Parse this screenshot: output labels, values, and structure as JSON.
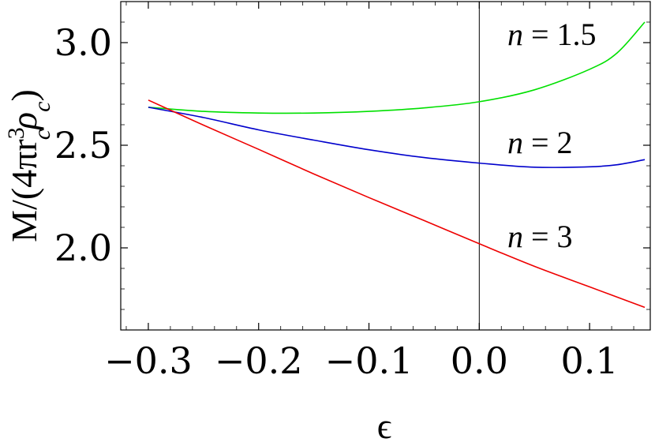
{
  "chart_data": {
    "type": "line",
    "title": "",
    "xlabel": "ϵ",
    "ylabel_parts": {
      "a": "M/(4πr",
      "sup": "3",
      "sub1": "c",
      "b": "ρ",
      "sub2": "c",
      "c": ")"
    },
    "xlim": [
      -0.325,
      0.155
    ],
    "ylim": [
      1.6,
      3.2
    ],
    "x_ticks": [
      {
        "value": -0.3,
        "label": "−0.3"
      },
      {
        "value": -0.2,
        "label": "−0.2"
      },
      {
        "value": -0.1,
        "label": "−0.1"
      },
      {
        "value": 0.0,
        "label": "0.0"
      },
      {
        "value": 0.1,
        "label": "0.1"
      }
    ],
    "y_ticks": [
      {
        "value": 2.0,
        "label": "2.0"
      },
      {
        "value": 2.5,
        "label": "2.5"
      },
      {
        "value": 3.0,
        "label": "3.0"
      }
    ],
    "vertical_line_x": 0.0,
    "grid": false,
    "series": [
      {
        "label_n": "n",
        "label_value": "= 1.5",
        "color": "#00e000",
        "x": [
          -0.3,
          -0.25,
          -0.2,
          -0.15,
          -0.1,
          -0.05,
          0.0,
          0.05,
          0.1,
          0.125,
          0.15
        ],
        "y": [
          2.685,
          2.665,
          2.657,
          2.657,
          2.665,
          2.682,
          2.712,
          2.77,
          2.87,
          2.95,
          3.1
        ]
      },
      {
        "label_n": "n",
        "label_value": "= 2",
        "color": "#0000cc",
        "x": [
          -0.3,
          -0.25,
          -0.2,
          -0.15,
          -0.1,
          -0.05,
          0.0,
          0.05,
          0.1,
          0.125,
          0.15
        ],
        "y": [
          2.685,
          2.635,
          2.575,
          2.525,
          2.478,
          2.44,
          2.413,
          2.393,
          2.395,
          2.405,
          2.43
        ]
      },
      {
        "label_n": "n",
        "label_value": "= 3",
        "color": "#ee0000",
        "x": [
          -0.3,
          -0.25,
          -0.2,
          -0.15,
          -0.1,
          -0.05,
          0.0,
          0.05,
          0.1,
          0.15
        ],
        "y": [
          2.72,
          2.598,
          2.48,
          2.36,
          2.245,
          2.133,
          2.02,
          1.91,
          1.81,
          1.71
        ]
      }
    ]
  }
}
